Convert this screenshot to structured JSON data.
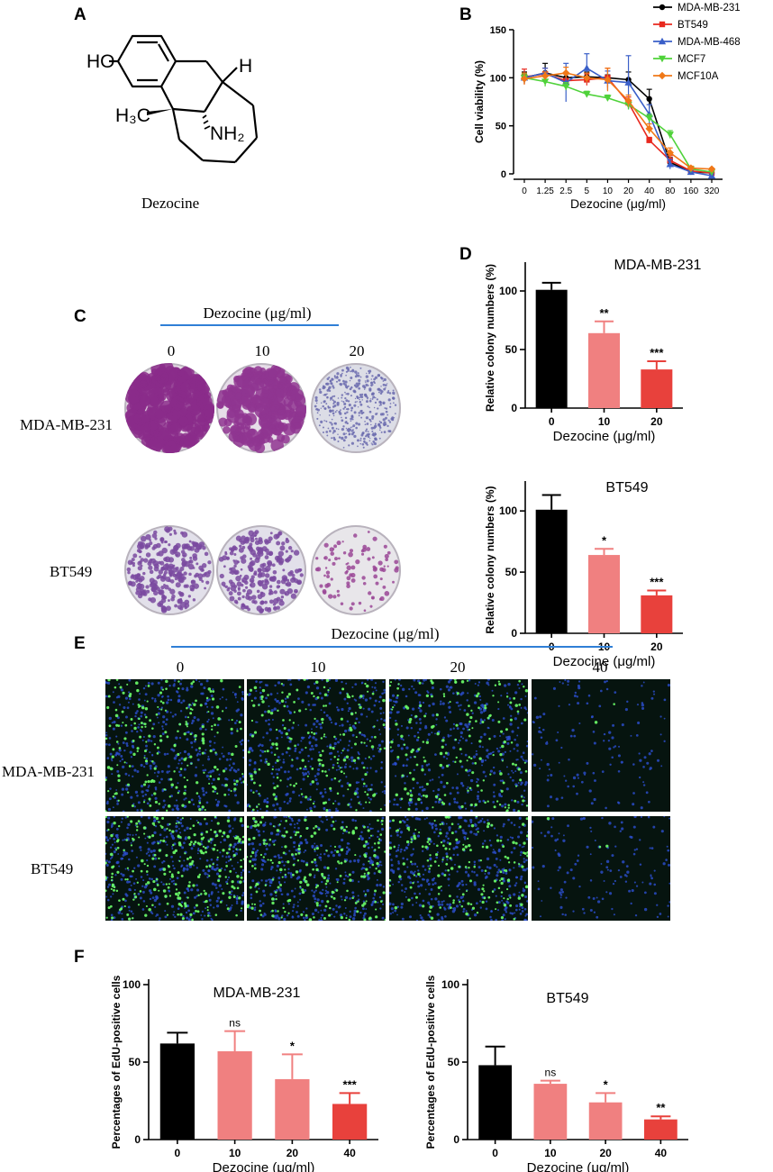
{
  "panels": {
    "A": "A",
    "B": "B",
    "C": "C",
    "D": "D",
    "E": "E",
    "F": "F"
  },
  "structure": {
    "ho": "HO",
    "h": "H",
    "h3c": "H₃C",
    "nh2": "NH₂",
    "name": "Dezocine"
  },
  "panelC": {
    "header": "Dezocine (μg/ml)",
    "columns": [
      "0",
      "10",
      "20"
    ],
    "rows": [
      "MDA-MB-231",
      "BT549"
    ]
  },
  "panelE": {
    "header": "Dezocine (μg/ml)",
    "columns": [
      "0",
      "10",
      "20",
      "40"
    ],
    "rows": [
      "MDA-MB-231",
      "BT549"
    ]
  },
  "colors": {
    "black": "#000000",
    "light_red": "#f08080",
    "red": "#e8413c",
    "mda231": "#000000",
    "bt549": "#e8281e",
    "mda468": "#3a5fc8",
    "mcf7": "#4fd23a",
    "mcf10a": "#f07818"
  },
  "chart_data": [
    {
      "id": "B",
      "type": "line",
      "xlabel": "Dezocine (μg/ml)",
      "ylabel": "Cell viability (%)",
      "categories": [
        "0",
        "1.25",
        "2.5",
        "5",
        "10",
        "20",
        "40",
        "80",
        "160",
        "320"
      ],
      "ylim": [
        0,
        150
      ],
      "yticks": [
        "0",
        "50",
        "100",
        "150"
      ],
      "legend": "top-right",
      "series": [
        {
          "name": "MDA-MB-231",
          "color": "#000000",
          "marker": "circle",
          "values": [
            100,
            105,
            100,
            101,
            100,
            98,
            78,
            12,
            2,
            1
          ]
        },
        {
          "name": "BT549",
          "color": "#e8281e",
          "marker": "square",
          "values": [
            101,
            104,
            97,
            98,
            100,
            74,
            35,
            14,
            3,
            1
          ]
        },
        {
          "name": "MDA-MB-468",
          "color": "#3a5fc8",
          "marker": "triangle",
          "values": [
            100,
            105,
            95,
            110,
            97,
            95,
            62,
            10,
            2,
            -2
          ]
        },
        {
          "name": "MCF7",
          "color": "#4fd23a",
          "marker": "down-triangle",
          "values": [
            100,
            96,
            91,
            83,
            79,
            72,
            58,
            41,
            5,
            2
          ]
        },
        {
          "name": "MCF10A",
          "color": "#f07818",
          "marker": "diamond",
          "values": [
            99,
            102,
            105,
            100,
            98,
            76,
            47,
            22,
            6,
            5
          ]
        }
      ]
    },
    {
      "id": "D1",
      "type": "bar",
      "title": "MDA-MB-231",
      "xlabel": "Dezocine (μg/ml)",
      "ylabel": "Relative colony numbers (%)",
      "categories": [
        "0",
        "10",
        "20"
      ],
      "values": [
        101,
        64,
        33
      ],
      "errors": [
        6,
        10,
        7
      ],
      "significance": [
        "",
        "**",
        "***"
      ],
      "ylim": [
        0,
        120
      ],
      "yticks": [
        "0",
        "50",
        "100"
      ]
    },
    {
      "id": "D2",
      "type": "bar",
      "title": "BT549",
      "xlabel": "Dezocine (μg/ml)",
      "ylabel": "Relative colony numbers (%)",
      "categories": [
        "0",
        "10",
        "20"
      ],
      "values": [
        101,
        64,
        31
      ],
      "errors": [
        12,
        5,
        4
      ],
      "significance": [
        "",
        "*",
        "***"
      ],
      "ylim": [
        0,
        120
      ],
      "yticks": [
        "0",
        "50",
        "100"
      ]
    },
    {
      "id": "F1",
      "type": "bar",
      "title": "MDA-MB-231",
      "xlabel": "Dezocine (μg/ml)",
      "ylabel": "Percentages of EdU-positive cells",
      "categories": [
        "0",
        "10",
        "20",
        "40"
      ],
      "values": [
        62,
        57,
        39,
        23
      ],
      "errors": [
        7,
        13,
        16,
        7
      ],
      "significance": [
        "",
        "ns",
        "*",
        "***"
      ],
      "ylim": [
        0,
        100
      ],
      "yticks": [
        "0",
        "50",
        "100"
      ]
    },
    {
      "id": "F2",
      "type": "bar",
      "title": "BT549",
      "xlabel": "Dezocine (μg/ml)",
      "ylabel": "Percentages of EdU-positive cells",
      "categories": [
        "0",
        "10",
        "20",
        "40"
      ],
      "values": [
        48,
        36,
        24,
        13
      ],
      "errors": [
        12,
        2,
        6,
        2
      ],
      "significance": [
        "",
        "ns",
        "*",
        "**"
      ],
      "ylim": [
        0,
        100
      ],
      "yticks": [
        "0",
        "50",
        "100"
      ]
    }
  ]
}
